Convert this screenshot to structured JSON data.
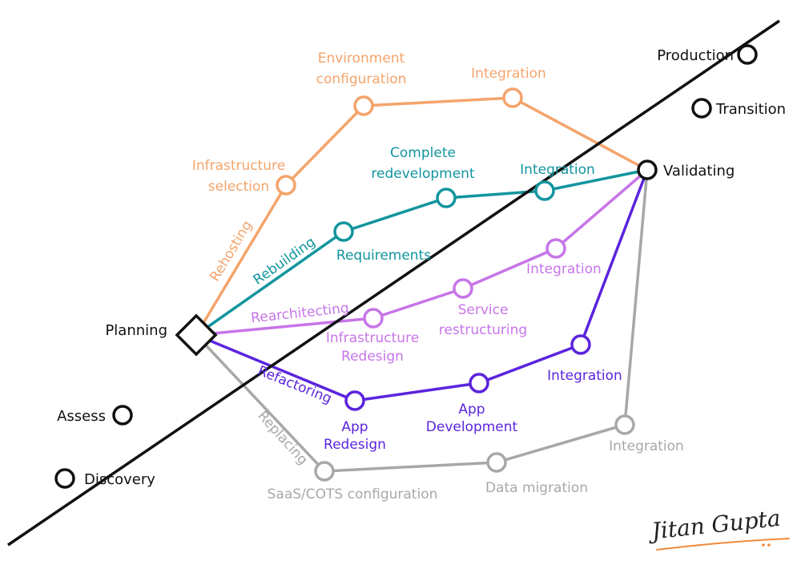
{
  "colors": {
    "main": "#111111",
    "rehosting": "#F4A46B",
    "rebuilding": "#12959E",
    "rearchitecting": "#C775E8",
    "refactoring": "#5B24DD",
    "replacing": "#A8A8A8",
    "signature": "#222222",
    "signature_underline": "#F08A3C"
  },
  "main_line": {
    "stages": [
      "Discovery",
      "Assess",
      "Planning",
      "Validating",
      "Transition",
      "Production"
    ]
  },
  "tracks": {
    "rehosting": {
      "name": "Rehosting",
      "steps": [
        "Infrastructure selection",
        "Environment configuration",
        "Integration"
      ]
    },
    "rebuilding": {
      "name": "Rebuilding",
      "steps": [
        "Requirements",
        "Complete redevelopment",
        "Integration"
      ]
    },
    "rearchitecting": {
      "name": "Rearchitecting",
      "steps": [
        "Infrastructure Redesign",
        "Service restructuring",
        "Integration"
      ]
    },
    "refactoring": {
      "name": "Refactoring",
      "steps": [
        "App Redesign",
        "App Development",
        "Integration"
      ]
    },
    "replacing": {
      "name": "Replacing",
      "steps": [
        "SaaS/COTS configuration",
        "Data migration",
        "Integration"
      ]
    }
  },
  "labels": {
    "discovery": "Discovery",
    "assess": "Assess",
    "planning": "Planning",
    "validating": "Validating",
    "transition": "Transition",
    "production": "Production",
    "rehosting": "Rehosting",
    "rebuilding": "Rebuilding",
    "rearchitecting": "Rearchitecting",
    "refactoring": "Refactoring",
    "replacing": "Replacing",
    "infra_selection_1": "Infrastructure",
    "infra_selection_2": "selection",
    "env_config_1": "Environment",
    "env_config_2": "configuration",
    "rehost_integration": "Integration",
    "requirements": "Requirements",
    "complete_redev_1": "Complete",
    "complete_redev_2": "redevelopment",
    "rebuild_integration": "Integration",
    "infra_redesign_1": "Infrastructure",
    "infra_redesign_2": "Redesign",
    "service_restruct_1": "Service",
    "service_restruct_2": "restructuring",
    "rearch_integration": "Integration",
    "app_redesign_1": "App",
    "app_redesign_2": "Redesign",
    "app_dev_1": "App",
    "app_dev_2": "Development",
    "refactor_integration": "Integration",
    "saas_config": "SaaS/COTS configuration",
    "data_migration": "Data migration",
    "replace_integration": "Integration"
  },
  "signature": "Jitan Gupta"
}
